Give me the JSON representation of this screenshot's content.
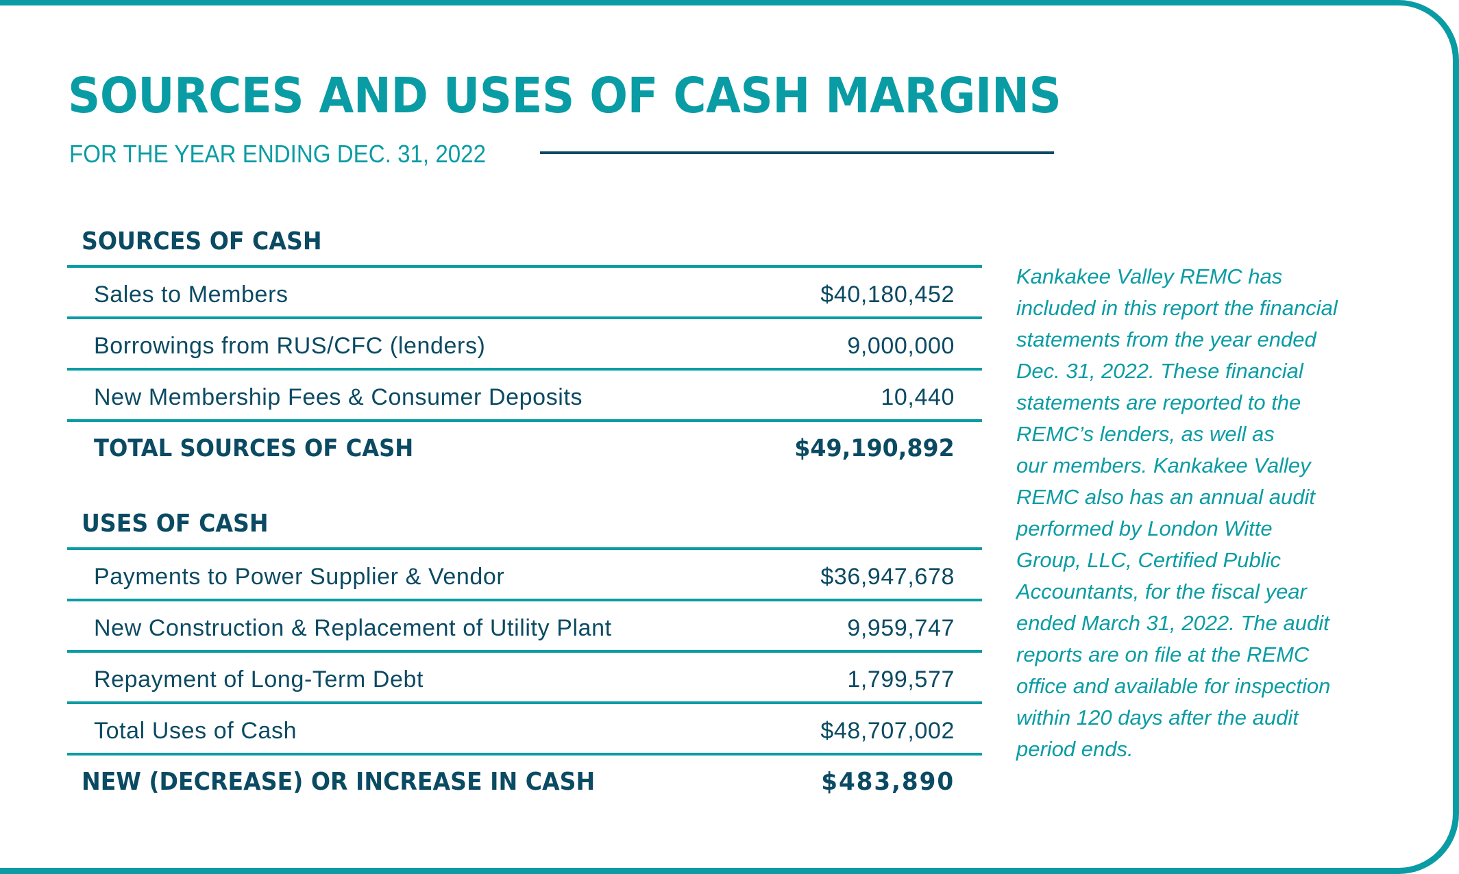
{
  "colors": {
    "teal": "#0a9ca4",
    "navy": "#0b4a63",
    "background": "#ffffff"
  },
  "header": {
    "title": "SOURCES AND USES OF CASH MARGINS",
    "subtitle": "FOR THE YEAR ENDING DEC. 31, 2022"
  },
  "sources": {
    "heading": "SOURCES OF CASH",
    "rows": [
      {
        "label": "Sales to Members",
        "value": "$40,180,452"
      },
      {
        "label": "Borrowings from RUS/CFC (lenders)",
        "value": "9,000,000"
      },
      {
        "label": "New Membership Fees & Consumer Deposits",
        "value": "10,440"
      }
    ],
    "total": {
      "label": "TOTAL SOURCES OF CASH",
      "value": "$49,190,892"
    }
  },
  "uses": {
    "heading": "USES OF CASH",
    "rows": [
      {
        "label": "Payments to Power Supplier & Vendor",
        "value": "$36,947,678"
      },
      {
        "label": "New Construction & Replacement of Utility Plant",
        "value": "9,959,747"
      },
      {
        "label": "Repayment of Long-Term Debt",
        "value": "1,799,577"
      },
      {
        "label": "Total Uses of Cash",
        "value": "$48,707,002"
      }
    ]
  },
  "net": {
    "label": "NEW (DECREASE) OR INCREASE IN CASH",
    "value": "$483,890"
  },
  "note": {
    "lines": [
      "Kankakee Valley REMC has",
      "included in this report the financial",
      "statements from the year ended",
      "Dec. 31, 2022. These financial",
      "statements are reported to the",
      "REMC’s lenders, as well as",
      "our members. Kankakee Valley",
      "REMC also has an annual audit",
      "performed by London Witte",
      "Group, LLC, Certified Public",
      "Accountants, for the fiscal year",
      "ended March 31, 2022. The audit",
      "reports are on file at the REMC",
      "office and available for inspection",
      "within 120 days after the audit",
      "period ends."
    ]
  }
}
